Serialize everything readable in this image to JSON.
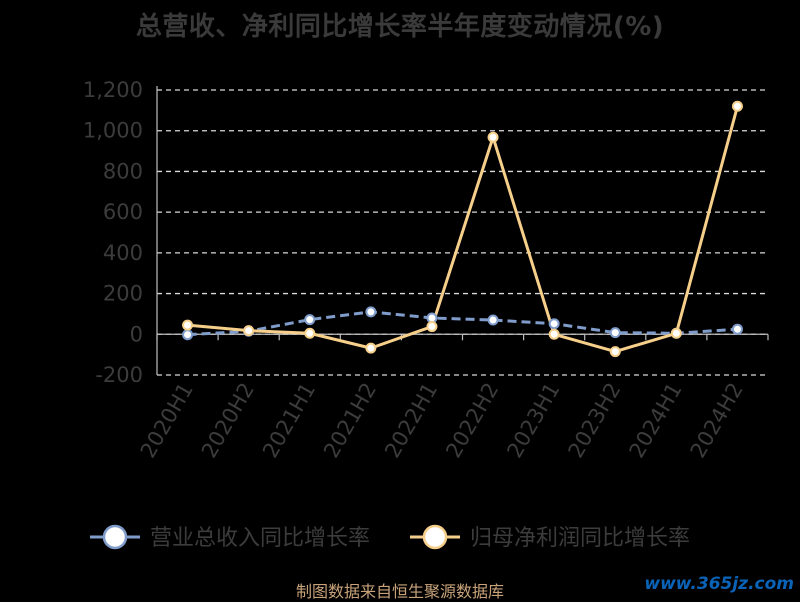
{
  "title": "总营收、净利同比增长率半年度变动情况(%)",
  "footer": "制图数据来自恒生聚源数据库",
  "watermark": "www.365jz.com",
  "chart_data": {
    "type": "line",
    "title": "总营收、净利同比增长率半年度变动情况(%)",
    "categories": [
      "2020H1",
      "2020H2",
      "2021H1",
      "2021H2",
      "2022H1",
      "2022H2",
      "2023H1",
      "2023H2",
      "2024H1",
      "2024H2"
    ],
    "ylim": [
      -200,
      1200
    ],
    "yticks": [
      -200,
      0,
      200,
      400,
      600,
      800,
      1000,
      1200
    ],
    "ytick_labels": [
      "-200",
      "0",
      "200",
      "400",
      "600",
      "800",
      "1,000",
      "1,200"
    ],
    "grid": true,
    "grid_style": "dashed",
    "legend_position": "bottom",
    "series": [
      {
        "name": "营业总收入同比增长率",
        "color": "#7f9ccb",
        "line_style": "dashed",
        "values": [
          -2,
          15,
          72,
          110,
          80,
          70,
          52,
          8,
          5,
          25
        ]
      },
      {
        "name": "归母净利润同比增长率",
        "color": "#f6cf8b",
        "line_style": "solid",
        "values": [
          45,
          18,
          5,
          -68,
          38,
          968,
          0,
          -85,
          5,
          1120
        ]
      }
    ]
  }
}
